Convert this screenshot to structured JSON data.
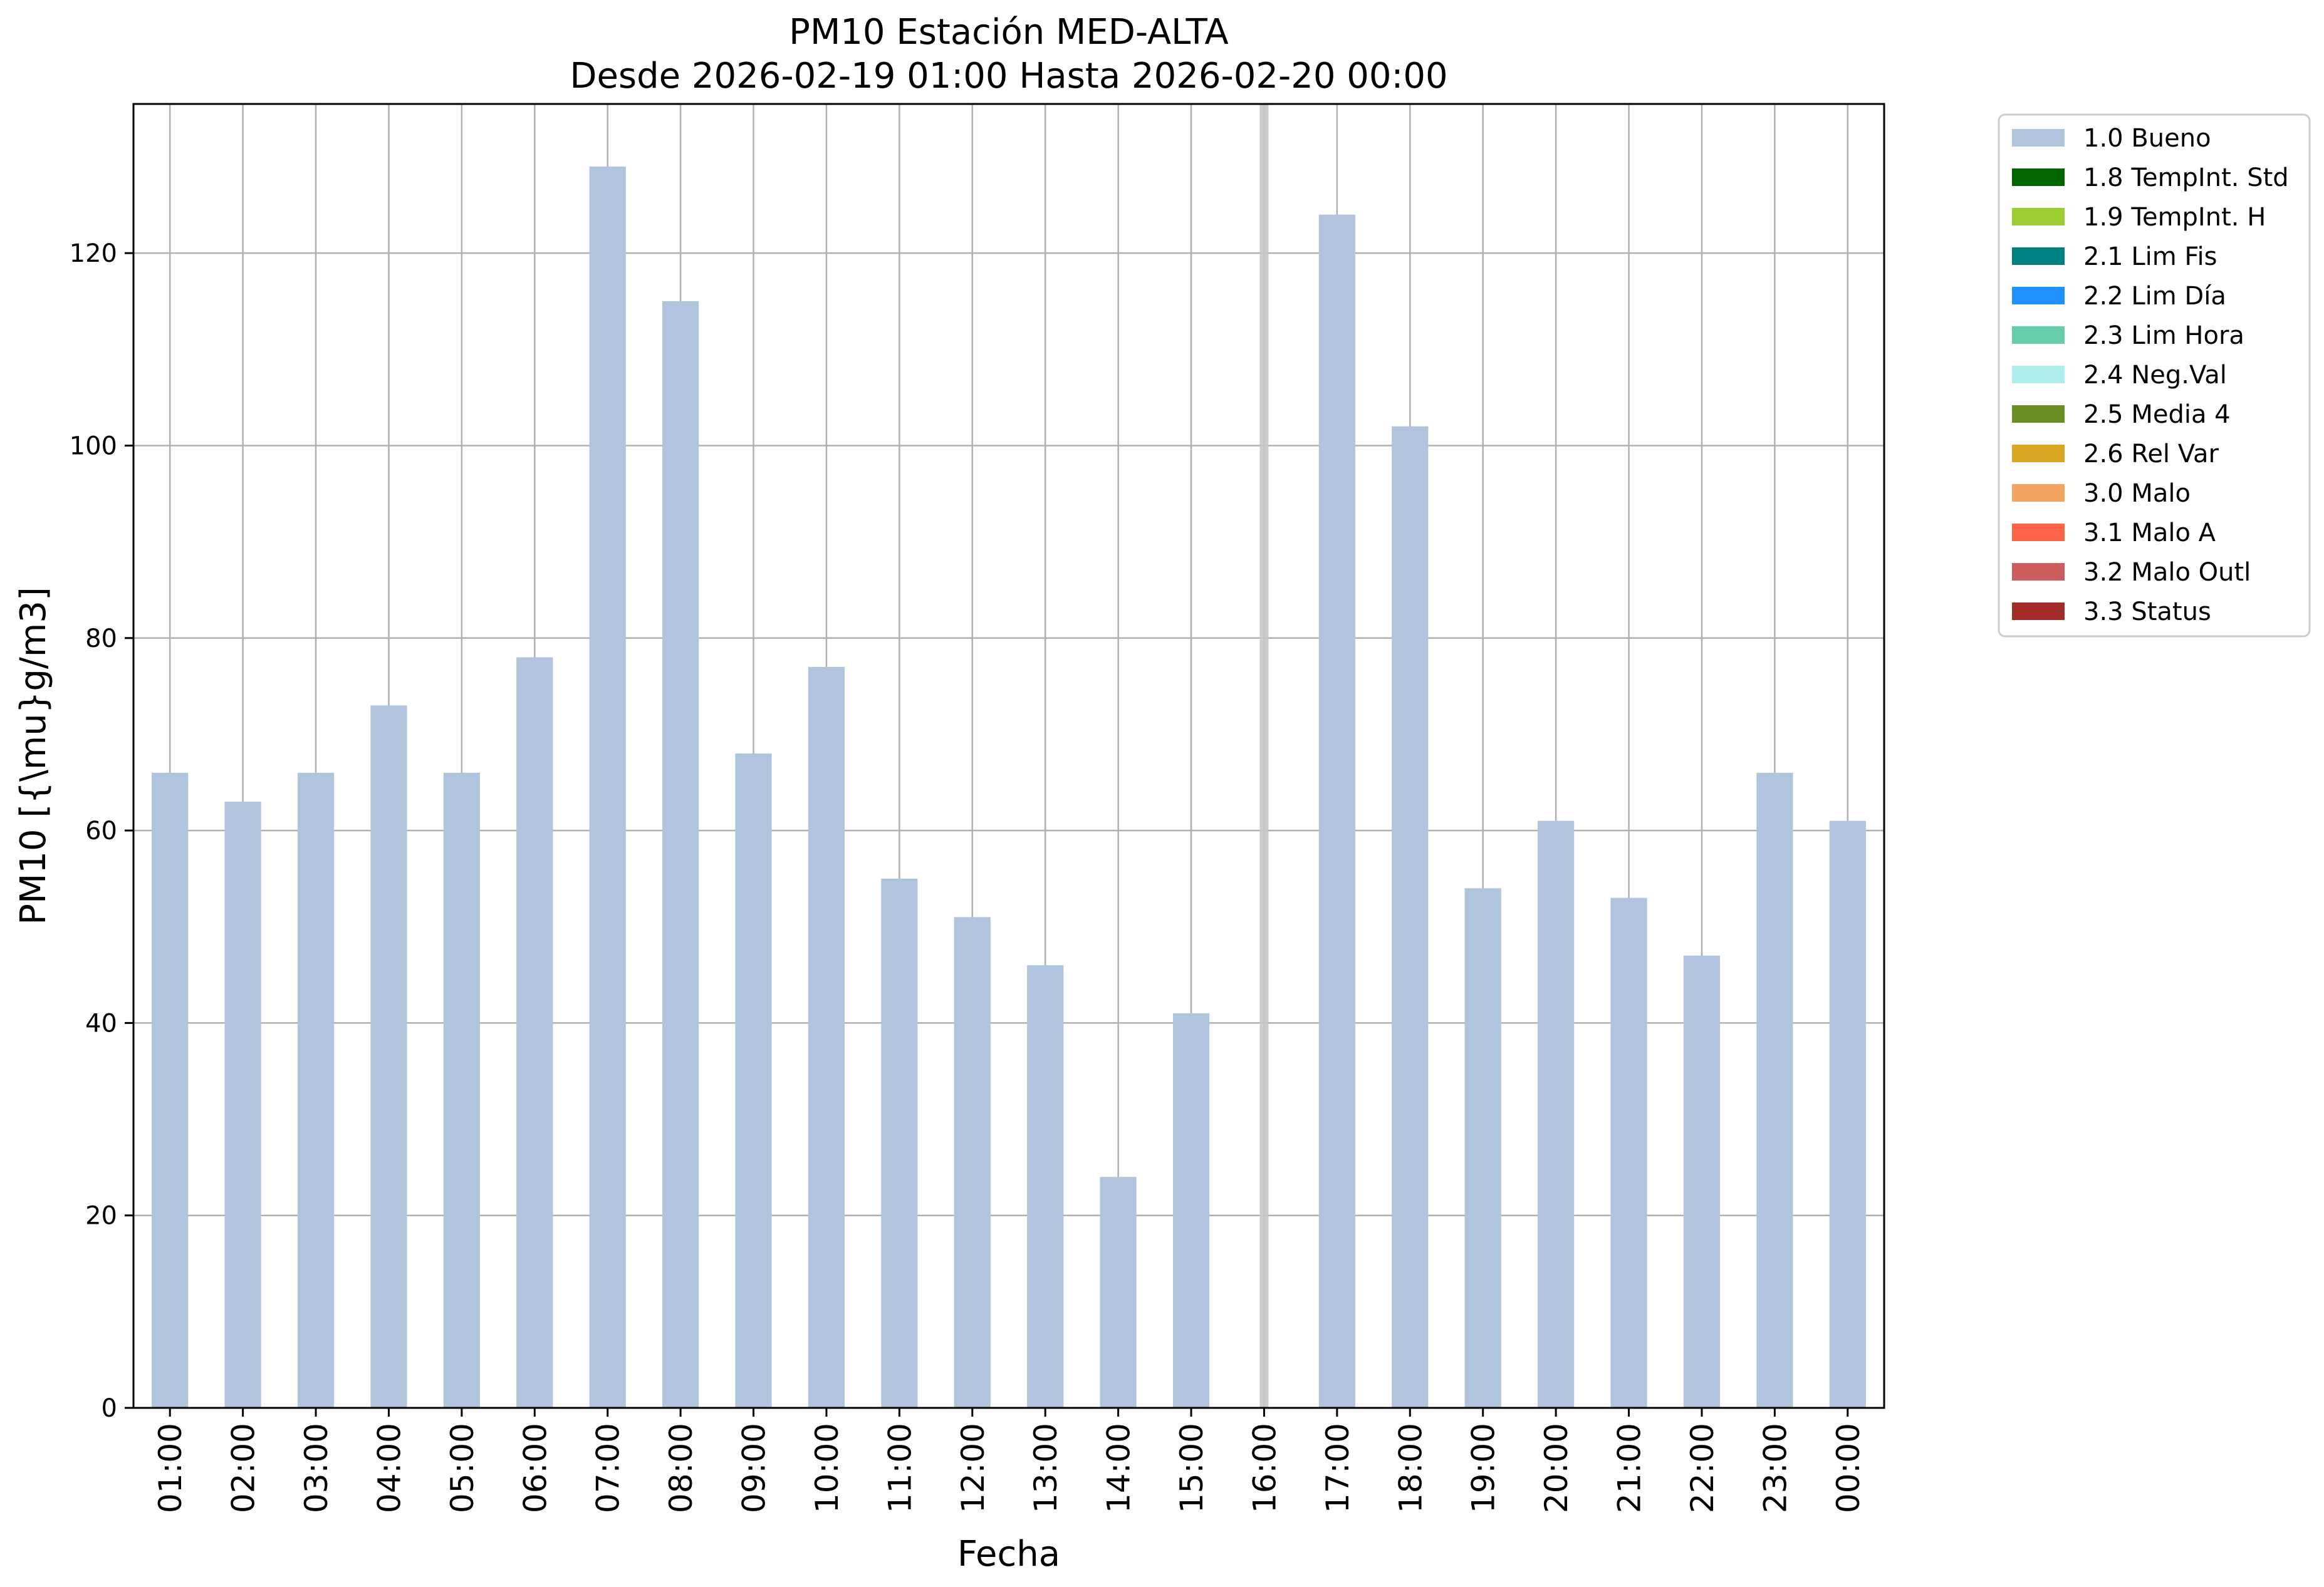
{
  "chart_data": {
    "type": "bar",
    "title": "PM10 Estación MED-ALTA",
    "subtitle": "Desde 2026-02-19 01:00 Hasta 2026-02-20 00:00",
    "xlabel": "Fecha",
    "ylabel": "PM10 [{\\mu}g/m3]",
    "ylim": [
      0,
      135.5
    ],
    "yticks": [
      0,
      20,
      40,
      60,
      80,
      100,
      120
    ],
    "grid": true,
    "legend_position": "outside-right-top",
    "categories": [
      "01:00",
      "02:00",
      "03:00",
      "04:00",
      "05:00",
      "06:00",
      "07:00",
      "08:00",
      "09:00",
      "10:00",
      "11:00",
      "12:00",
      "13:00",
      "14:00",
      "15:00",
      "16:00",
      "17:00",
      "18:00",
      "19:00",
      "20:00",
      "21:00",
      "22:00",
      "23:00",
      "00:00"
    ],
    "series": [
      {
        "name": "1.0 Bueno",
        "color": "#b0c4de",
        "values": [
          66,
          63,
          66,
          73,
          66,
          78,
          129,
          115,
          68,
          77,
          55,
          51,
          46,
          24,
          41,
          null,
          124,
          102,
          54,
          61,
          53,
          47,
          66,
          61
        ]
      }
    ],
    "missing_marker": {
      "category": "16:00",
      "color": "#c8c8c8"
    },
    "legend": [
      {
        "label": "1.0 Bueno",
        "color": "#b0c4de"
      },
      {
        "label": "1.8 TempInt. Std",
        "color": "#006400"
      },
      {
        "label": "1.9 TempInt. H",
        "color": "#9acd32"
      },
      {
        "label": "2.1 Lim Fis",
        "color": "#008080"
      },
      {
        "label": "2.2 Lim Día",
        "color": "#1e90ff"
      },
      {
        "label": "2.3 Lim Hora",
        "color": "#66cdaa"
      },
      {
        "label": "2.4 Neg.Val",
        "color": "#afeeee"
      },
      {
        "label": "2.5 Media 4",
        "color": "#6b8e23"
      },
      {
        "label": "2.6 Rel Var",
        "color": "#daa520"
      },
      {
        "label": "3.0 Malo",
        "color": "#f4a460"
      },
      {
        "label": "3.1 Malo A",
        "color": "#ff6347"
      },
      {
        "label": "3.2 Malo Outl",
        "color": "#cd5c5c"
      },
      {
        "label": "3.3 Status",
        "color": "#a52a2a"
      }
    ]
  }
}
